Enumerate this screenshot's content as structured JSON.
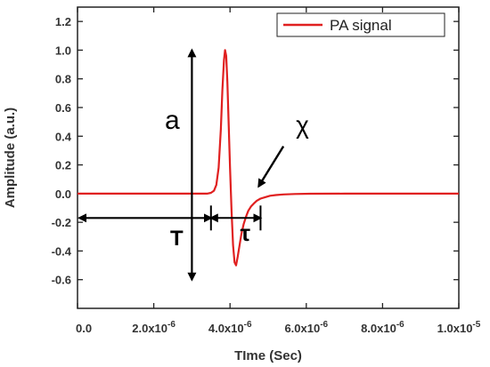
{
  "chart_data": {
    "type": "line",
    "xlabel": "TIme (Sec)",
    "ylabel": "Amplitude (a.u.)",
    "xlim": [
      0,
      1e-05
    ],
    "ylim": [
      -0.8,
      1.3
    ],
    "x_ticks": [
      0,
      2e-06,
      4e-06,
      6e-06,
      8e-06,
      1e-05
    ],
    "x_tick_labels": [
      {
        "mantissa": "0.0",
        "exp": ""
      },
      {
        "mantissa": "2.0x10",
        "exp": "-6"
      },
      {
        "mantissa": "4.0x10",
        "exp": "-6"
      },
      {
        "mantissa": "6.0x10",
        "exp": "-6"
      },
      {
        "mantissa": "8.0x10",
        "exp": "-6"
      },
      {
        "mantissa": "1.0x10",
        "exp": "-5"
      }
    ],
    "y_ticks": [
      -0.6,
      -0.4,
      -0.2,
      0.0,
      0.2,
      0.4,
      0.6,
      0.8,
      1.0,
      1.2
    ],
    "y_tick_labels": [
      "-0.6",
      "-0.4",
      "-0.2",
      "0.0",
      "0.2",
      "0.4",
      "0.6",
      "0.8",
      "1.0",
      "1.2"
    ],
    "legend": {
      "position": "top-right"
    },
    "series": [
      {
        "name": "PA signal",
        "color": "#e02020",
        "x": [
          0,
          3.4e-06,
          3.5e-06,
          3.58e-06,
          3.64e-06,
          3.7e-06,
          3.76e-06,
          3.8e-06,
          3.84e-06,
          3.87e-06,
          3.9e-06,
          3.93e-06,
          3.96e-06,
          4e-06,
          4.04e-06,
          4.08e-06,
          4.12e-06,
          4.16e-06,
          4.2e-06,
          4.25e-06,
          4.3e-06,
          4.36e-06,
          4.42e-06,
          4.48e-06,
          4.55e-06,
          4.62e-06,
          4.7e-06,
          4.8e-06,
          4.92e-06,
          5.05e-06,
          5.2e-06,
          5.4e-06,
          5.7e-06,
          6.1e-06,
          7e-06,
          8e-06,
          1e-05
        ],
        "y": [
          0.0,
          0.0,
          0.005,
          0.02,
          0.06,
          0.18,
          0.45,
          0.72,
          0.93,
          1.0,
          0.96,
          0.78,
          0.52,
          0.18,
          -0.12,
          -0.36,
          -0.48,
          -0.5,
          -0.44,
          -0.36,
          -0.28,
          -0.21,
          -0.16,
          -0.12,
          -0.09,
          -0.07,
          -0.05,
          -0.035,
          -0.025,
          -0.015,
          -0.01,
          -0.006,
          -0.003,
          -0.001,
          0.0,
          0.0,
          0.0
        ]
      }
    ],
    "annotations": {
      "amplitude_label": "a",
      "amplitude_from": 1.0,
      "amplitude_to": -0.6,
      "amplitude_x": 3e-06,
      "delay_label": "T",
      "delay_from": 0,
      "delay_to": 3.5e-06,
      "delay_y": -0.17,
      "width_label": "τ",
      "width_from": 3.5e-06,
      "width_to": 4.8e-06,
      "width_y": -0.17,
      "decay_label": "χ"
    }
  }
}
